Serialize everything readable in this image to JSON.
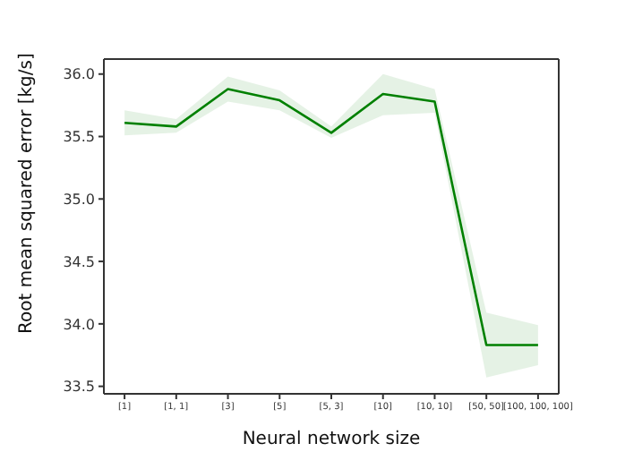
{
  "chart_data": {
    "type": "line",
    "xlabel": "Neural network size",
    "ylabel": "Root mean squared error [kg/s]",
    "categories": [
      "[1]",
      "[1, 1]",
      "[3]",
      "[5]",
      "[5, 3]",
      "[10]",
      "[10, 10]",
      "[50, 50]",
      "[100, 100, 100]"
    ],
    "series": [
      {
        "color": "#008000",
        "values": [
          35.61,
          35.58,
          35.88,
          35.79,
          35.53,
          35.84,
          35.78,
          33.83,
          33.83
        ],
        "lower": [
          35.51,
          35.53,
          35.78,
          35.71,
          35.49,
          35.67,
          35.69,
          33.57,
          33.67
        ],
        "upper": [
          35.71,
          35.64,
          35.98,
          35.87,
          35.58,
          36.0,
          35.88,
          34.09,
          33.99
        ]
      }
    ],
    "ylim": [
      33.44,
      36.12
    ],
    "yticks": [
      33.5,
      {
        "value": 34,
        "label": "34.0"
      },
      34.5,
      {
        "value": 35,
        "label": "35.0"
      },
      35.5,
      {
        "value": 36,
        "label": "36.0"
      }
    ],
    "grid": false,
    "marker": "none",
    "line_style": "solid"
  }
}
